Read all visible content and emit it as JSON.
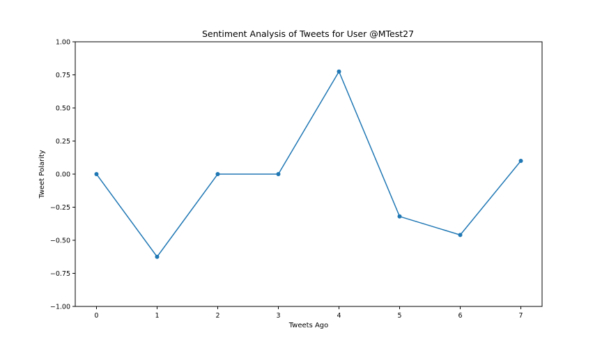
{
  "chart_data": {
    "type": "line",
    "title": "Sentiment Analysis of Tweets for User @MTest27",
    "xlabel": "Tweets Ago",
    "ylabel": "Tweet Polarity",
    "x": [
      0,
      1,
      2,
      3,
      4,
      5,
      6,
      7
    ],
    "y": [
      0.0,
      -0.625,
      0.0,
      0.0,
      0.775,
      -0.32,
      -0.46,
      0.1
    ],
    "xlim": [
      -0.35,
      7.35
    ],
    "ylim": [
      -1.0,
      1.0
    ],
    "xticks": [
      "0",
      "1",
      "2",
      "3",
      "4",
      "5",
      "6",
      "7"
    ],
    "yticks": [
      "1.00",
      "0.75",
      "0.50",
      "0.25",
      "0.00",
      "−0.25",
      "−0.50",
      "−0.75",
      "−1.00"
    ],
    "ytick_values": [
      1.0,
      0.75,
      0.5,
      0.25,
      0.0,
      -0.25,
      -0.5,
      -0.75,
      -1.0
    ],
    "grid": false,
    "line_color": "#1f77b4",
    "marker": "circle"
  }
}
